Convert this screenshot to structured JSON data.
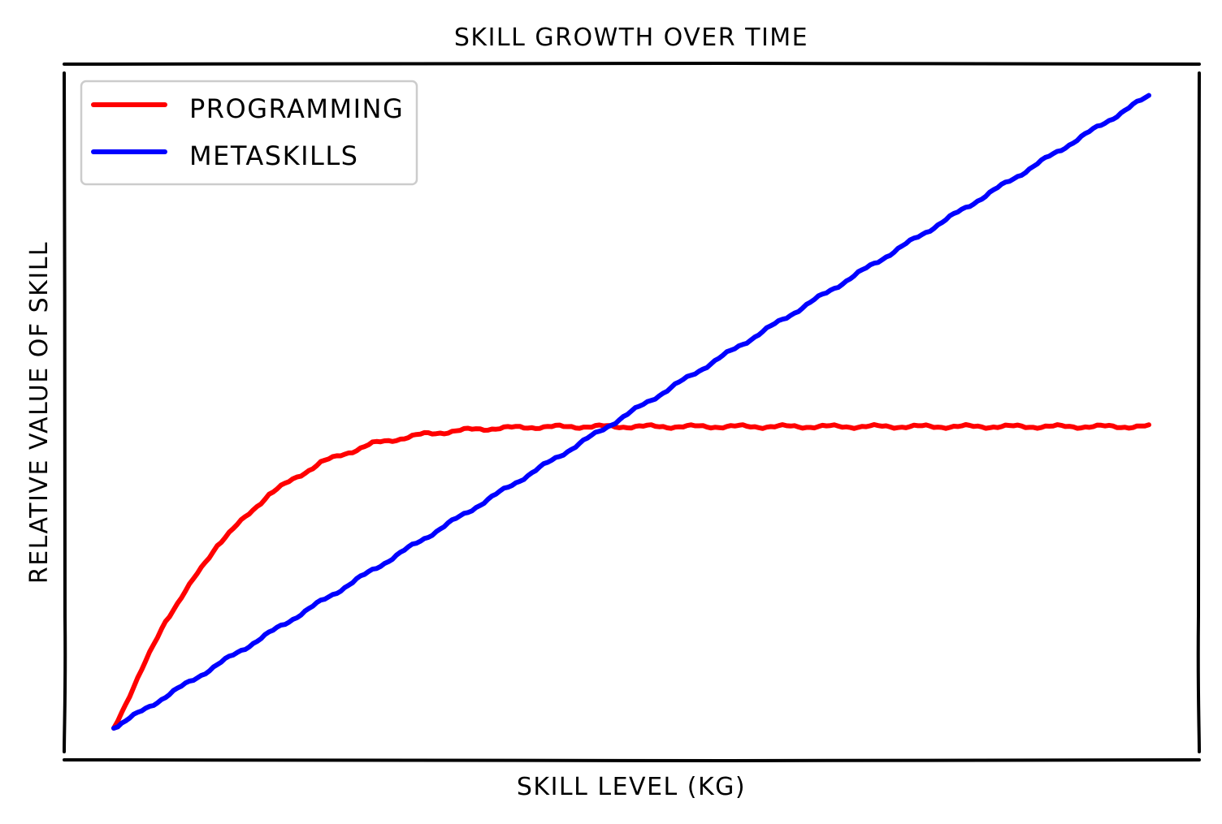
{
  "chart_data": {
    "type": "line",
    "title": "SKILL GROWTH OVER TIME",
    "xlabel": "SKILL LEVEL (KG)",
    "ylabel": "RELATIVE VALUE OF SKILL",
    "xlim": [
      0,
      1
    ],
    "ylim": [
      0,
      1
    ],
    "grid": false,
    "xticks": false,
    "yticks": false,
    "legend": {
      "position": "upper-left"
    },
    "x": [
      0.0,
      0.05,
      0.1,
      0.15,
      0.2,
      0.25,
      0.3,
      0.35,
      0.4,
      0.45,
      0.5,
      0.55,
      0.6,
      0.65,
      0.7,
      0.75,
      0.8,
      0.85,
      0.9,
      0.95,
      1.0
    ],
    "series": [
      {
        "name": "PROGRAMMING",
        "color": "#ff0000",
        "values": [
          0.0,
          0.17,
          0.29,
          0.37,
          0.42,
          0.45,
          0.465,
          0.473,
          0.476,
          0.477,
          0.477,
          0.477,
          0.477,
          0.477,
          0.477,
          0.477,
          0.477,
          0.477,
          0.477,
          0.477,
          0.477
        ]
      },
      {
        "name": "METASKILLS",
        "color": "#0000ff",
        "values": [
          0.0,
          0.05,
          0.1,
          0.15,
          0.2,
          0.25,
          0.3,
          0.35,
          0.4,
          0.45,
          0.5,
          0.55,
          0.6,
          0.65,
          0.7,
          0.75,
          0.8,
          0.85,
          0.9,
          0.95,
          1.0
        ]
      }
    ]
  }
}
